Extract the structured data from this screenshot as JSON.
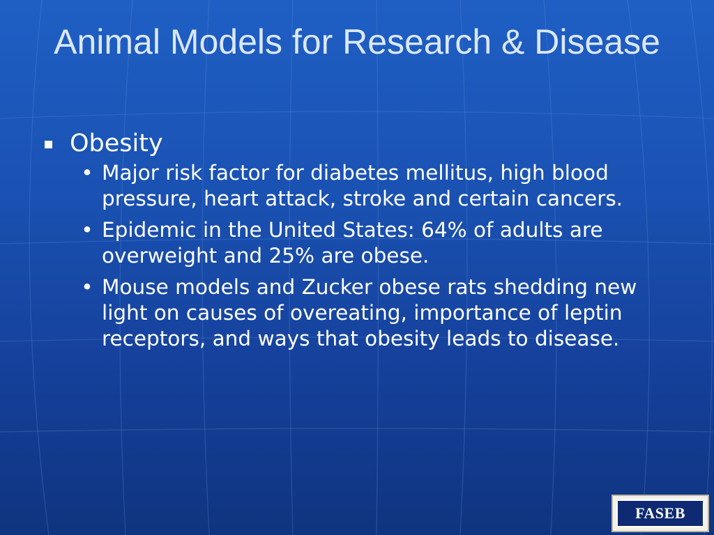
{
  "title": "Animal Models for Research & Disease",
  "main_point": {
    "label": "Obesity",
    "sub_points": [
      "Major risk factor for diabetes mellitus, high blood pressure, heart attack, stroke and certain cancers.",
      "Epidemic in the United States: 64% of adults are overweight and 25% are obese.",
      "Mouse models and Zucker obese rats shedding new light on causes of overeating, importance of leptin receptors, and ways that obesity leads to disease."
    ]
  },
  "logo": {
    "text": "FASEB"
  },
  "colors": {
    "background_top": "#1f5fc4",
    "background_bottom": "#0f347f",
    "title": "#dbe8ff",
    "body_text": "#ffffff",
    "logo_field": "#0e2a72"
  },
  "bullet_char": "•"
}
